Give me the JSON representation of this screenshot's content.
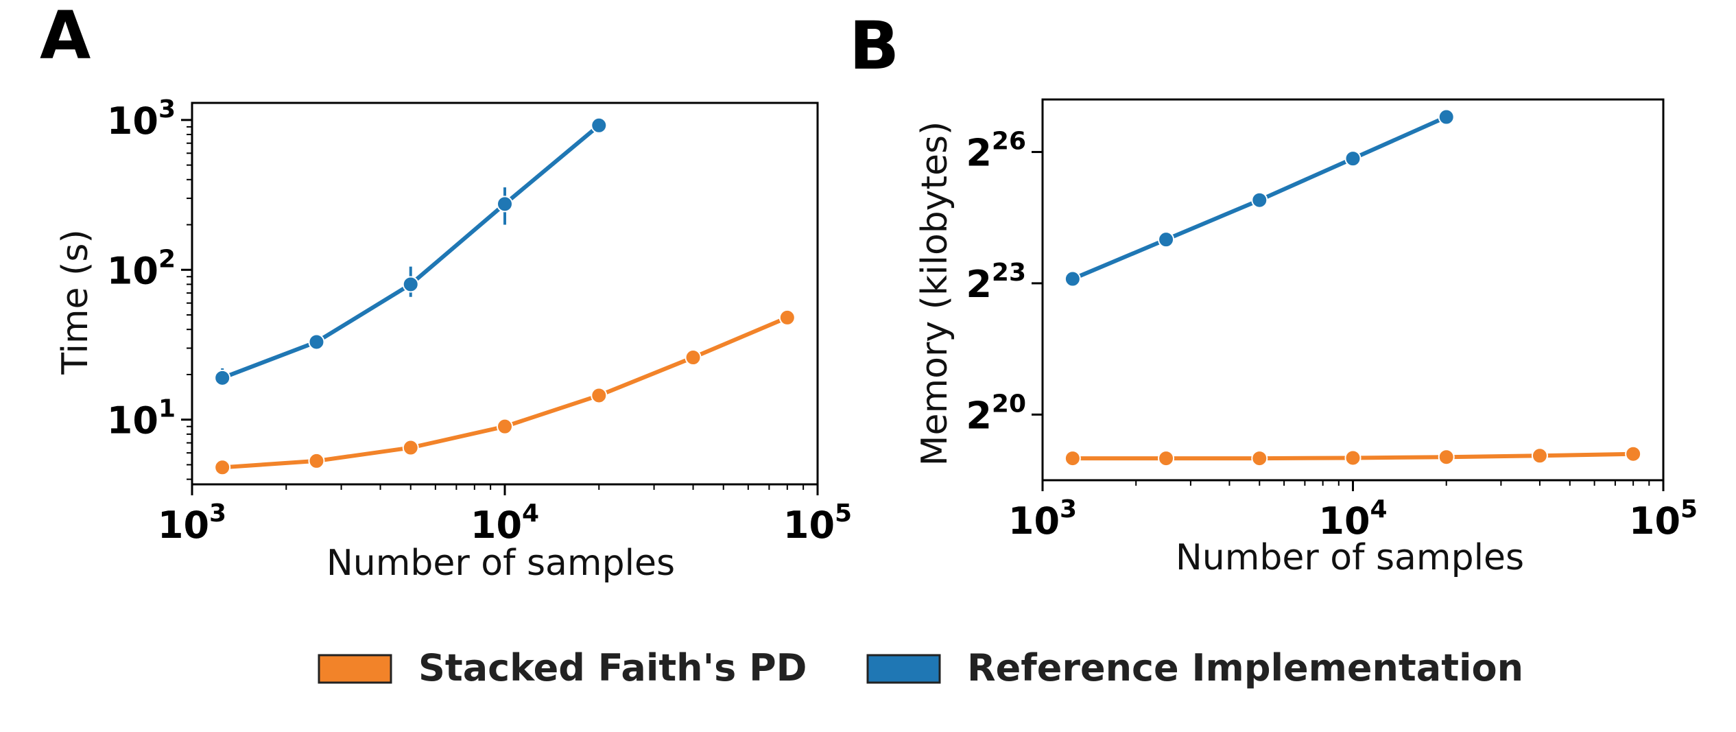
{
  "colors": {
    "stacked": "#f28329",
    "reference": "#1f77b4"
  },
  "legend": {
    "items": [
      {
        "label": "Stacked Faith's PD",
        "color": "#f28329"
      },
      {
        "label": "Reference Implementation",
        "color": "#1f77b4"
      }
    ]
  },
  "chart_data": [
    {
      "panel": "A",
      "type": "line",
      "title": "",
      "xlabel": "Number of samples",
      "ylabel": "Time (s)",
      "x_scale": "log10",
      "y_scale": "log10",
      "xlim": [
        1000,
        100000
      ],
      "ylim": [
        3.7,
        1300
      ],
      "x_ticks": [
        {
          "value": 1000,
          "base": "10",
          "exp": "3"
        },
        {
          "value": 10000,
          "base": "10",
          "exp": "4"
        },
        {
          "value": 100000,
          "base": "10",
          "exp": "5"
        }
      ],
      "y_ticks": [
        {
          "value": 10,
          "base": "10",
          "exp": "1"
        },
        {
          "value": 100,
          "base": "10",
          "exp": "2"
        },
        {
          "value": 1000,
          "base": "10",
          "exp": "3"
        }
      ],
      "series": [
        {
          "name": "Stacked Faith's PD",
          "color": "#f28329",
          "x": [
            1250,
            2500,
            5000,
            10000,
            20000,
            40000,
            80000
          ],
          "y": [
            4.8,
            5.3,
            6.5,
            9.0,
            14.5,
            26,
            48
          ]
        },
        {
          "name": "Reference Implementation",
          "color": "#1f77b4",
          "x": [
            1250,
            2500,
            5000,
            10000,
            20000
          ],
          "y": [
            19,
            33,
            80,
            275,
            920
          ],
          "err_low": [
            17.5,
            31,
            66,
            200,
            890
          ],
          "err_high": [
            22,
            37,
            105,
            355,
            950
          ]
        }
      ]
    },
    {
      "panel": "B",
      "type": "line",
      "title": "",
      "xlabel": "Number of samples",
      "ylabel": "Memory (kilobytes)",
      "x_scale": "log10",
      "y_scale": "log2",
      "xlim": [
        1000,
        100000
      ],
      "ylim_log2": [
        18.5,
        27.2
      ],
      "x_ticks": [
        {
          "value": 1000,
          "base": "10",
          "exp": "3"
        },
        {
          "value": 10000,
          "base": "10",
          "exp": "4"
        },
        {
          "value": 100000,
          "base": "10",
          "exp": "5"
        }
      ],
      "y_ticks": [
        {
          "log2": 20,
          "base": "2",
          "exp": "20"
        },
        {
          "log2": 23,
          "base": "2",
          "exp": "23"
        },
        {
          "log2": 26,
          "base": "2",
          "exp": "26"
        }
      ],
      "series": [
        {
          "name": "Stacked Faith's PD",
          "color": "#f28329",
          "x": [
            1250,
            2500,
            5000,
            10000,
            20000,
            40000,
            80000
          ],
          "y_log2": [
            19.0,
            19.0,
            19.0,
            19.01,
            19.03,
            19.06,
            19.1
          ]
        },
        {
          "name": "Reference Implementation",
          "color": "#1f77b4",
          "x": [
            1250,
            2500,
            5000,
            10000,
            20000
          ],
          "y_log2": [
            23.1,
            24.0,
            24.9,
            25.85,
            26.8
          ]
        }
      ]
    }
  ]
}
